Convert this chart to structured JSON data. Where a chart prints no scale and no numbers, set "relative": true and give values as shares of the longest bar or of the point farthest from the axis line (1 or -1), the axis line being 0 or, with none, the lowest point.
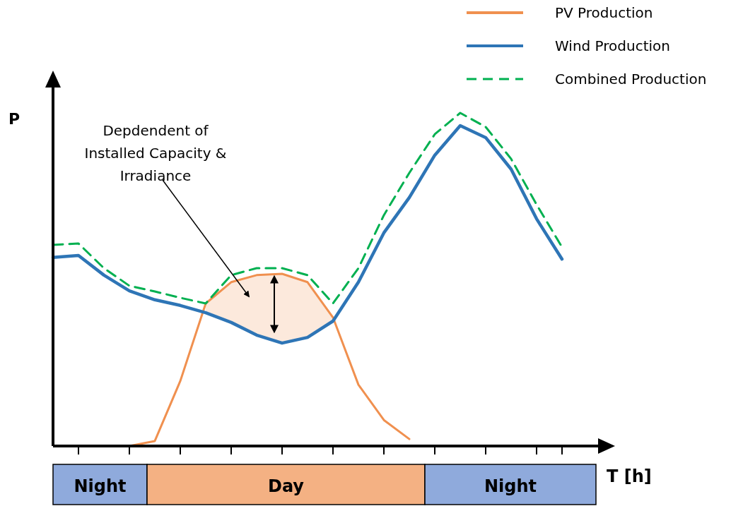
{
  "chart_data": {
    "type": "line",
    "relative": true,
    "xlabel": "T [h]",
    "ylabel": "P",
    "categories": [
      null,
      null,
      null,
      null,
      null,
      null,
      null,
      null,
      null,
      null,
      null,
      null,
      null,
      null,
      null,
      null,
      null,
      null,
      null,
      null,
      null
    ],
    "grid": false,
    "legend": "top right",
    "series": [
      {
        "name": "PV Production",
        "color": "#f0904f",
        "values": [
          null,
          null,
          null,
          0,
          0.015,
          0.195,
          0.428,
          0.492,
          0.513,
          0.517,
          0.492,
          0.386,
          0.184,
          0.078,
          0.021,
          null,
          null,
          null,
          null,
          null,
          null
        ],
        "lower": [
          null,
          null,
          null,
          null,
          null,
          null,
          0.4,
          0.371,
          0.333,
          0.309,
          0.326,
          0.375,
          null,
          null,
          null,
          null,
          null,
          null,
          null,
          null,
          null
        ],
        "upper": [
          null,
          null,
          null,
          null,
          null,
          null,
          0.428,
          0.492,
          0.513,
          0.517,
          0.492,
          0.386,
          null,
          null,
          null,
          null,
          null,
          null,
          null,
          null,
          null
        ]
      },
      {
        "name": "Wind Production",
        "color": "#2e75b6",
        "values": [
          0.566,
          0.572,
          0.513,
          0.466,
          0.439,
          0.422,
          0.4,
          0.371,
          0.333,
          0.309,
          0.326,
          0.375,
          0.492,
          0.64,
          0.746,
          0.873,
          0.962,
          0.926,
          0.831,
          0.682,
          0.561
        ]
      },
      {
        "name": "Combined Production",
        "color": "#00b050",
        "line_style": "dashed",
        "values": [
          0.604,
          0.608,
          0.534,
          0.481,
          0.464,
          0.445,
          0.428,
          0.513,
          0.534,
          0.534,
          0.513,
          0.428,
          0.534,
          0.693,
          0.82,
          0.936,
          1,
          0.958,
          0.862,
          0.725,
          0.597
        ]
      }
    ],
    "annotations": [
      "Depdendent of Installed Capacity & Irradiance",
      "Night",
      "Day",
      "Night"
    ]
  }
}
